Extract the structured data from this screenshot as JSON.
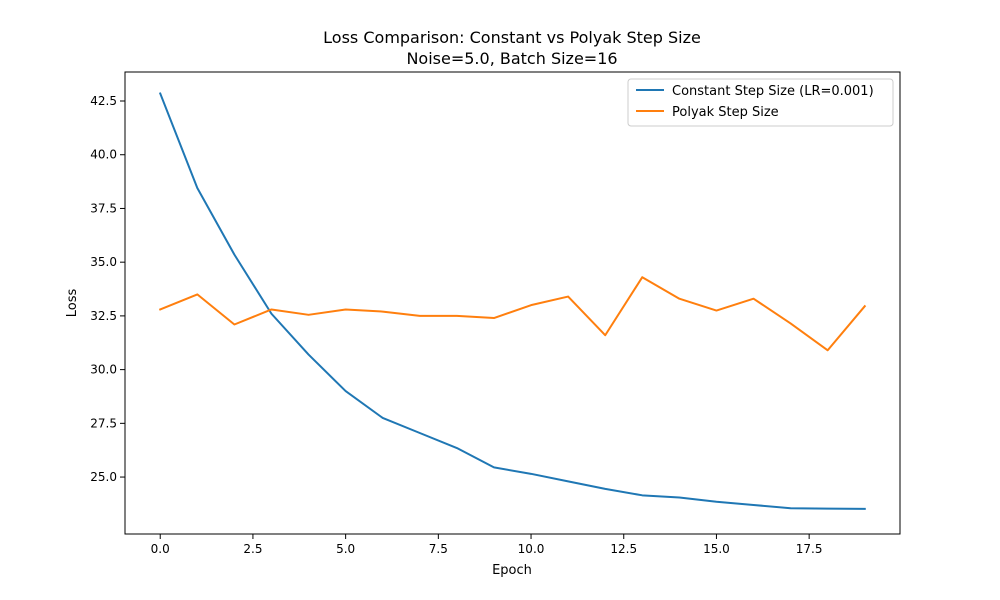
{
  "chart_data": {
    "type": "line",
    "title": "Loss Comparison: Constant vs Polyak Step Size",
    "subtitle": "Noise=5.0, Batch Size=16",
    "xlabel": "Epoch",
    "ylabel": "Loss",
    "xlim": [
      -0.95,
      19.95
    ],
    "ylim": [
      22.35,
      43.85
    ],
    "xticks": [
      0.0,
      2.5,
      5.0,
      7.5,
      10.0,
      12.5,
      15.0,
      17.5
    ],
    "xtick_labels": [
      "0.0",
      "2.5",
      "5.0",
      "7.5",
      "10.0",
      "12.5",
      "15.0",
      "17.5"
    ],
    "yticks": [
      25.0,
      27.5,
      30.0,
      32.5,
      35.0,
      37.5,
      40.0,
      42.5
    ],
    "ytick_labels": [
      "25.0",
      "27.5",
      "30.0",
      "32.5",
      "35.0",
      "37.5",
      "40.0",
      "42.5"
    ],
    "grid": false,
    "legend_position": "top-right",
    "x": [
      0,
      1,
      2,
      3,
      4,
      5,
      6,
      7,
      8,
      9,
      10,
      11,
      12,
      13,
      14,
      15,
      16,
      17,
      18,
      19
    ],
    "series": [
      {
        "name": "Constant Step Size (LR=0.001)",
        "color": "#1f77b4",
        "values": [
          42.85,
          38.45,
          35.35,
          32.6,
          30.7,
          29.0,
          27.75,
          27.05,
          26.35,
          25.45,
          25.15,
          24.8,
          24.45,
          24.15,
          24.05,
          23.85,
          23.7,
          23.55,
          23.53,
          23.52
        ]
      },
      {
        "name": "Polyak Step Size",
        "color": "#ff7f0e",
        "values": [
          32.8,
          33.5,
          32.1,
          32.8,
          32.55,
          32.8,
          32.7,
          32.5,
          32.5,
          32.4,
          33.0,
          33.4,
          31.6,
          34.3,
          33.3,
          32.75,
          33.3,
          32.15,
          30.9,
          32.95
        ]
      }
    ]
  }
}
